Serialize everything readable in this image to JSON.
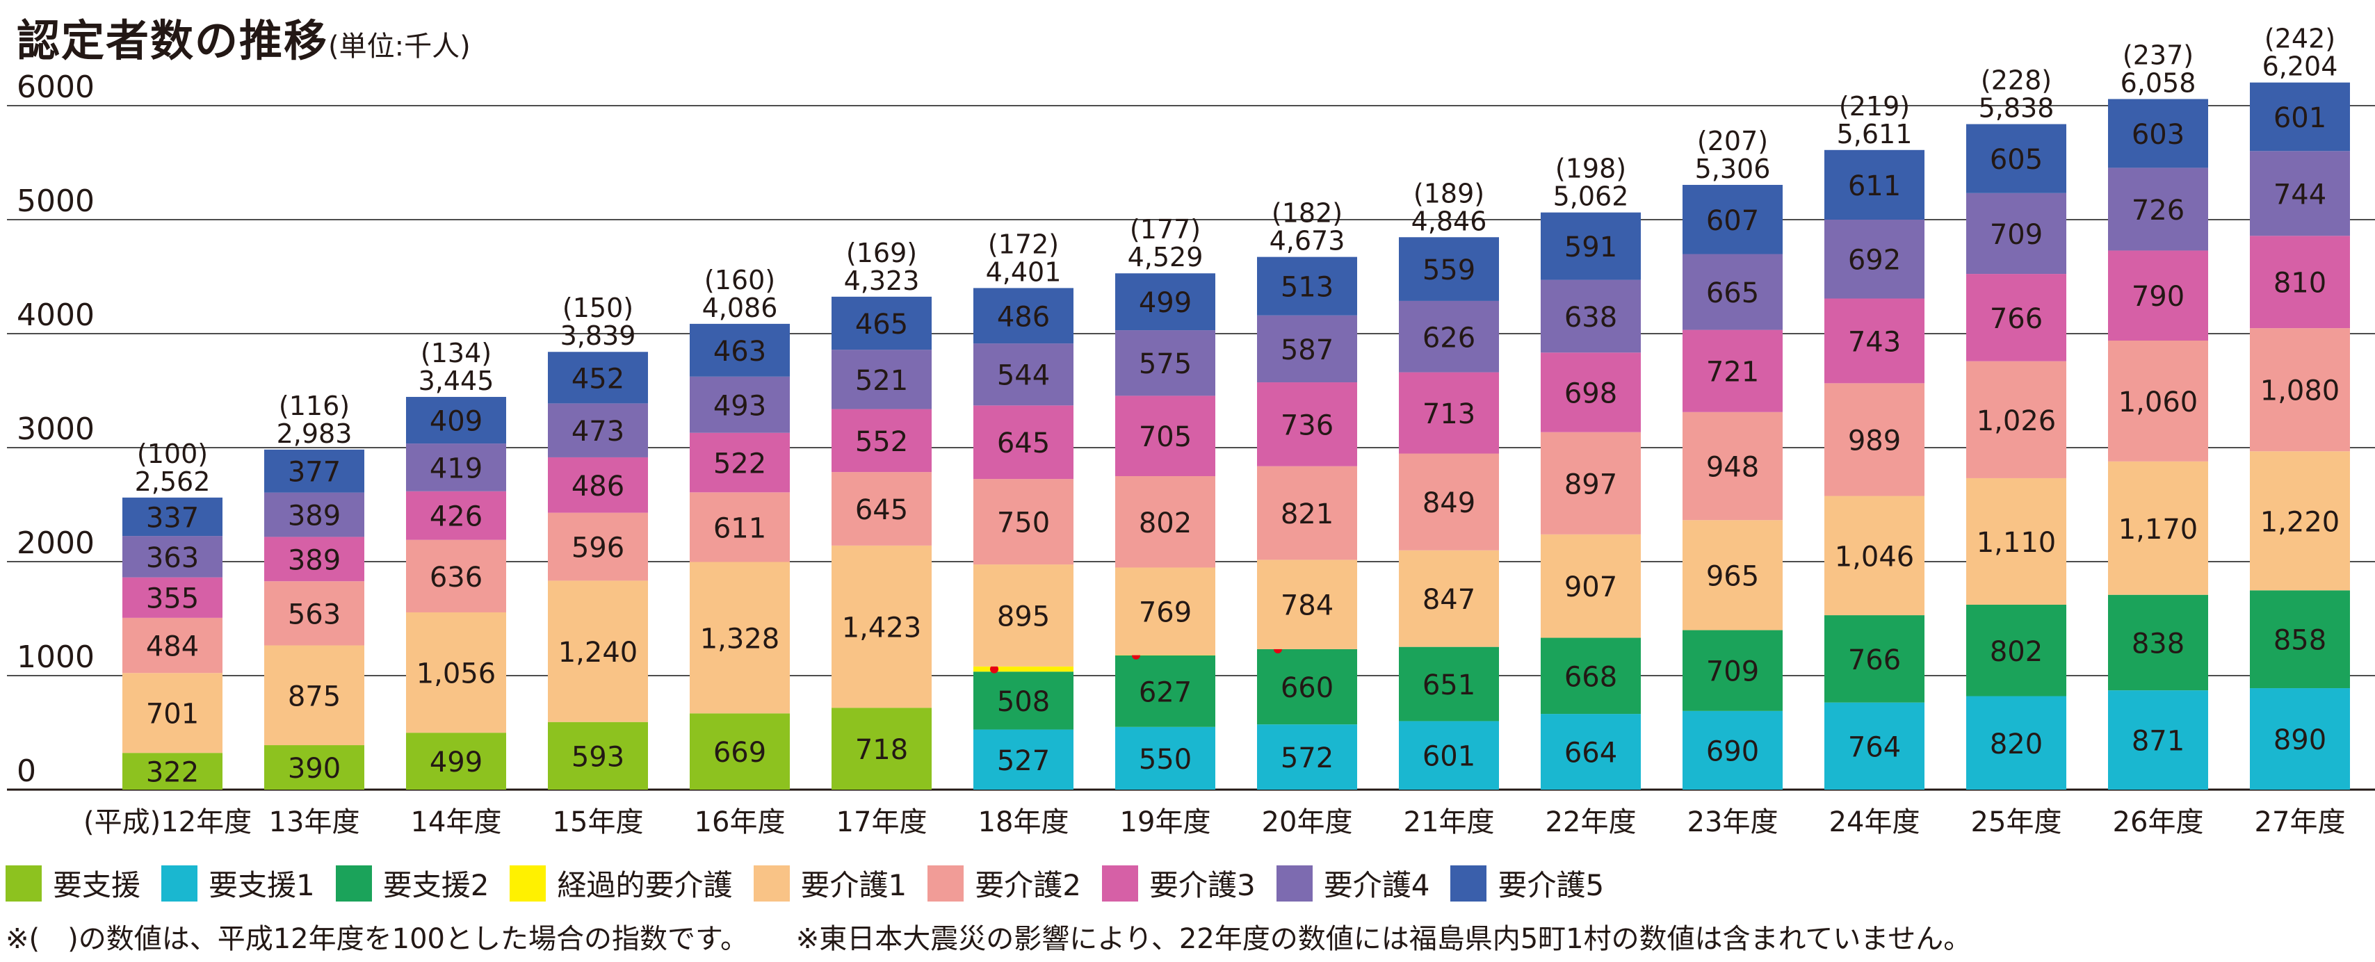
{
  "title": "認定者数の推移",
  "unit": "(単位:千人)",
  "notes": [
    "※(　)の数値は、平成12年度を100とした場合の指数です。",
    "※東日本大震災の影響により、22年度の数値には福島県内5町1村の数値は含まれていません。"
  ],
  "chart_data": {
    "type": "bar",
    "stacked": true,
    "title": "認定者数の推移",
    "unit": "(単位:千人)",
    "ylim": [
      0,
      6000
    ],
    "yticks": [
      0,
      1000,
      2000,
      3000,
      4000,
      5000,
      6000
    ],
    "grid": true,
    "legend_position": "bottom",
    "categories": [
      "(平成)12年度",
      "13年度",
      "14年度",
      "15年度",
      "16年度",
      "17年度",
      "18年度",
      "19年度",
      "20年度",
      "21年度",
      "22年度",
      "23年度",
      "24年度",
      "25年度",
      "26年度",
      "27年度"
    ],
    "totals": [
      "2,562",
      "2,983",
      "3,445",
      "3,839",
      "4,086",
      "4,323",
      "4,401",
      "4,529",
      "4,673",
      "4,846",
      "5,062",
      "5,306",
      "5,611",
      "5,838",
      "6,058",
      "6,204"
    ],
    "index": [
      "(100)",
      "(116)",
      "(134)",
      "(150)",
      "(160)",
      "(169)",
      "(172)",
      "(177)",
      "(182)",
      "(189)",
      "(198)",
      "(207)",
      "(219)",
      "(228)",
      "(237)",
      "(242)"
    ],
    "series": [
      {
        "name": "要支援",
        "color": "#8dc21f",
        "values": [
          322,
          390,
          499,
          593,
          669,
          718,
          null,
          null,
          null,
          null,
          null,
          null,
          null,
          null,
          null,
          null
        ]
      },
      {
        "name": "要支援1",
        "color": "#1ab7d0",
        "values": [
          null,
          null,
          null,
          null,
          null,
          null,
          527,
          550,
          572,
          601,
          664,
          690,
          764,
          820,
          871,
          890
        ]
      },
      {
        "name": "要支援2",
        "color": "#1ba35a",
        "values": [
          null,
          null,
          null,
          null,
          null,
          null,
          508,
          627,
          660,
          651,
          668,
          709,
          766,
          802,
          838,
          858
        ]
      },
      {
        "name": "経過的要介護",
        "color": "#fff100",
        "values": [
          null,
          null,
          null,
          null,
          null,
          null,
          45,
          2,
          0,
          null,
          null,
          null,
          null,
          null,
          null,
          null
        ]
      },
      {
        "name": "要介護1",
        "color": "#f9c386",
        "values": [
          701,
          875,
          1056,
          1240,
          1328,
          1423,
          895,
          769,
          784,
          847,
          907,
          965,
          1046,
          1110,
          1170,
          1220
        ]
      },
      {
        "name": "要介護2",
        "color": "#f19c97",
        "values": [
          484,
          563,
          636,
          596,
          611,
          645,
          750,
          802,
          821,
          849,
          897,
          948,
          989,
          1026,
          1060,
          1080
        ]
      },
      {
        "name": "要介護3",
        "color": "#d660a6",
        "values": [
          355,
          389,
          426,
          486,
          522,
          552,
          645,
          705,
          736,
          713,
          698,
          721,
          743,
          766,
          790,
          810
        ]
      },
      {
        "name": "要介護4",
        "color": "#7d6bb0",
        "values": [
          363,
          389,
          419,
          473,
          493,
          521,
          544,
          575,
          587,
          626,
          638,
          665,
          692,
          709,
          726,
          744
        ]
      },
      {
        "name": "要介護5",
        "color": "#3a5fab",
        "values": [
          337,
          377,
          409,
          452,
          463,
          465,
          486,
          499,
          513,
          559,
          591,
          607,
          611,
          605,
          603,
          601
        ]
      }
    ]
  }
}
